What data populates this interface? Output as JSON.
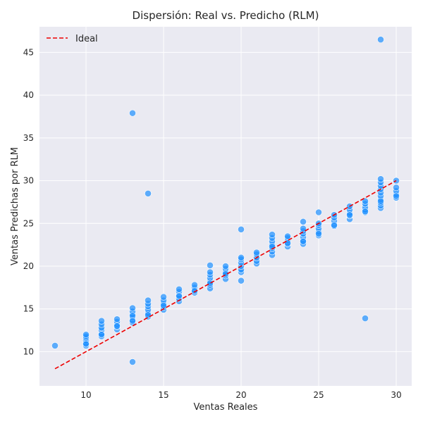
{
  "chart_data": {
    "type": "scatter",
    "title": "Dispersión: Real vs. Predicho (RLM)",
    "xlabel": "Ventas Reales",
    "ylabel": "Ventas Predichas por RLM",
    "xlim": [
      7.0,
      31.0
    ],
    "ylim": [
      6.0,
      48.0
    ],
    "xticks": [
      10,
      15,
      20,
      25,
      30
    ],
    "yticks": [
      10,
      15,
      20,
      25,
      30,
      35,
      40,
      45
    ],
    "grid": true,
    "legend": {
      "position": "top-left",
      "entries": [
        "Ideal"
      ]
    },
    "colors": {
      "points": "#1e90ff",
      "point_edge": "#ffffff",
      "ideal_line": "#ee0000",
      "background": "#eaeaf2",
      "grid": "#ffffff"
    },
    "ideal_line": {
      "name": "Ideal",
      "x": [
        8,
        30
      ],
      "y": [
        8,
        30
      ],
      "style": "dashed"
    },
    "series": [
      {
        "x": [
          8,
          10,
          10,
          10,
          10,
          10,
          10,
          10,
          11,
          11,
          11,
          11,
          11,
          11,
          11,
          12,
          12,
          12,
          12,
          12,
          12,
          13,
          13,
          13,
          13,
          13,
          13,
          13,
          13,
          14,
          14,
          14,
          14,
          14,
          14,
          14,
          15,
          15,
          15,
          15,
          15,
          15,
          16,
          16,
          16,
          16,
          16,
          16,
          17,
          17,
          17,
          17,
          17,
          18,
          18,
          18,
          18,
          18,
          18,
          18,
          18,
          19,
          19,
          19,
          19,
          19,
          19,
          20,
          20,
          20,
          20,
          20,
          20,
          20,
          20,
          21,
          21,
          21,
          21,
          21,
          22,
          22,
          22,
          22,
          22,
          22,
          22,
          22,
          23,
          23,
          23,
          23,
          23,
          23,
          24,
          24,
          24,
          24,
          24,
          24,
          24,
          24,
          25,
          25,
          25,
          25,
          25,
          25,
          25,
          26,
          26,
          26,
          26,
          26,
          27,
          27,
          27,
          27,
          27,
          27,
          28,
          28,
          28,
          28,
          28,
          28,
          29,
          29,
          29,
          29,
          29,
          29,
          29,
          29,
          29,
          29,
          29,
          30,
          30,
          30,
          30,
          30,
          30,
          13,
          14,
          29,
          28,
          13
        ],
        "y": [
          10.7,
          10.7,
          11.0,
          11.3,
          11.6,
          11.8,
          12.0,
          10.9,
          11.8,
          12.1,
          12.5,
          12.8,
          13.2,
          13.6,
          12.0,
          12.6,
          12.9,
          13.2,
          13.5,
          13.8,
          13.0,
          13.4,
          13.7,
          14.0,
          14.4,
          14.7,
          15.1,
          14.2,
          13.6,
          14.1,
          14.5,
          14.9,
          15.3,
          15.6,
          16.0,
          14.3,
          14.9,
          15.2,
          15.6,
          16.0,
          16.4,
          15.4,
          15.9,
          16.2,
          16.6,
          17.0,
          17.3,
          16.5,
          16.9,
          17.2,
          17.5,
          17.8,
          17.1,
          17.4,
          17.8,
          18.2,
          18.6,
          19.0,
          19.3,
          20.1,
          18.0,
          18.5,
          18.9,
          19.3,
          19.7,
          20.0,
          19.1,
          18.3,
          19.3,
          19.6,
          20.0,
          20.4,
          20.8,
          21.0,
          24.3,
          20.3,
          20.6,
          21.0,
          21.4,
          21.6,
          21.3,
          21.7,
          22.1,
          22.5,
          22.9,
          23.3,
          23.7,
          22.3,
          22.3,
          22.6,
          23.0,
          23.3,
          23.5,
          22.7,
          22.6,
          23.0,
          23.4,
          23.8,
          24.1,
          24.4,
          25.2,
          22.9,
          23.6,
          24.0,
          24.4,
          24.8,
          25.0,
          26.3,
          23.8,
          24.7,
          25.3,
          25.7,
          26.0,
          24.8,
          25.5,
          25.9,
          26.2,
          26.6,
          27.0,
          26.0,
          26.3,
          26.6,
          26.9,
          27.3,
          27.6,
          26.4,
          26.8,
          27.1,
          27.4,
          27.8,
          28.2,
          28.6,
          29.0,
          29.4,
          29.8,
          30.2,
          27.6,
          28.0,
          28.4,
          28.8,
          29.2,
          30.0,
          28.2,
          37.9,
          28.5,
          46.5,
          13.9,
          8.8
        ]
      }
    ]
  }
}
